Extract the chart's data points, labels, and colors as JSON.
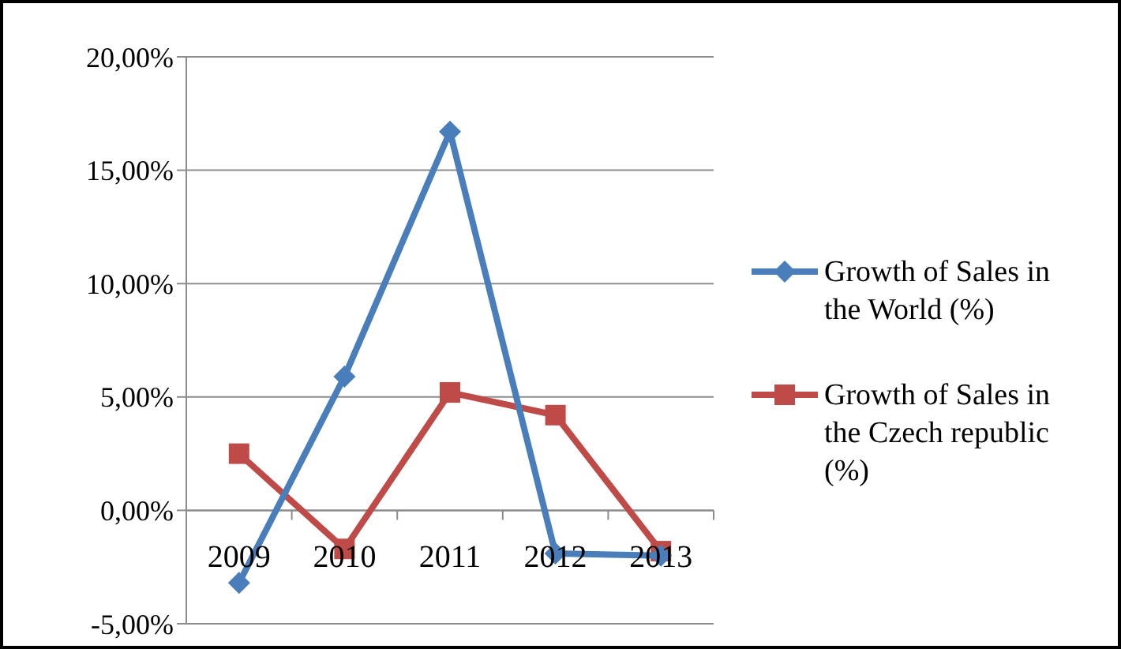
{
  "chart_data": {
    "type": "line",
    "categories": [
      "2009",
      "2010",
      "2011",
      "2012",
      "2013"
    ],
    "series": [
      {
        "name": "Growth of Sales in the World (%)",
        "color": "#4a7ebb",
        "marker": "diamond",
        "values": [
          -3.2,
          5.9,
          16.7,
          -1.9,
          -2.0
        ]
      },
      {
        "name": "Growth of Sales in the Czech republic (%)",
        "color": "#be4b48",
        "marker": "square",
        "values": [
          2.5,
          -1.7,
          5.2,
          4.2,
          -1.8
        ]
      }
    ],
    "ylim": [
      -5,
      20
    ],
    "yticks": [
      {
        "value": -5,
        "label": "-5,00%"
      },
      {
        "value": 0,
        "label": "0,00%"
      },
      {
        "value": 5,
        "label": "5,00%"
      },
      {
        "value": 10,
        "label": "10,00%"
      },
      {
        "value": 15,
        "label": "15,00%"
      },
      {
        "value": 20,
        "label": "20,00%"
      }
    ],
    "grid": "y",
    "legend": "right"
  }
}
